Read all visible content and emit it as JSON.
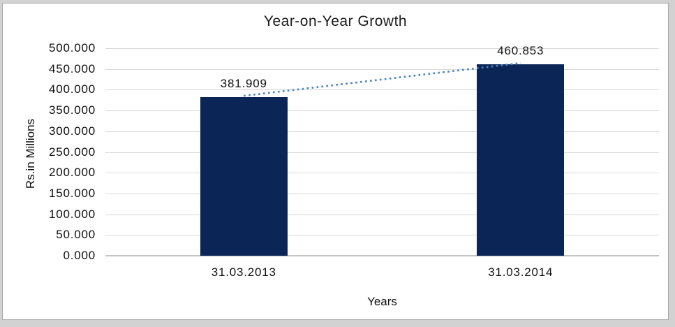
{
  "chart_data": {
    "type": "bar",
    "title": "Year-on-Year Growth",
    "xlabel": "Years",
    "ylabel": "Rs.in Millions",
    "categories": [
      "31.03.2013",
      "31.03.2014"
    ],
    "values": [
      381.909,
      460.853
    ],
    "data_labels": [
      "381.909",
      "460.853"
    ],
    "ylim": [
      0,
      500
    ],
    "ytick_values": [
      0,
      50,
      100,
      150,
      200,
      250,
      300,
      350,
      400,
      450,
      500
    ],
    "ytick_labels": [
      "0.000",
      "50.000",
      "100.000",
      "150.000",
      "200.000",
      "250.000",
      "300.000",
      "350.000",
      "400.000",
      "450.000",
      "500.000"
    ],
    "grid": true,
    "legend": "none",
    "trendline": true,
    "colors": {
      "page_bg": "#d2d2d2",
      "chart_bg": "#ffffff",
      "chart_border": "#a6a6a6",
      "bar": "#0c2557",
      "trendline": "#4e86c5",
      "gridline": "#d9d9d9",
      "axis_line": "#c4c4c4",
      "text": "#111111"
    }
  }
}
